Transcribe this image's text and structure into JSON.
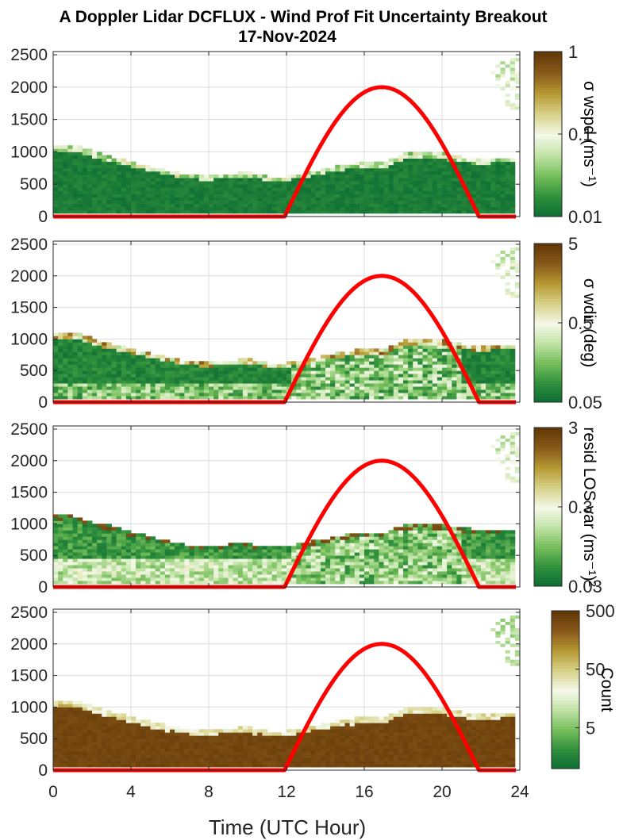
{
  "figure": {
    "title_line1": "A Doppler Lidar DCFLUX - Wind Prof Fit Uncertainty Breakout",
    "title_line2": "17-Nov-2024",
    "xlabel": "Time (UTC Hour)"
  },
  "colors": {
    "curve": "#ff0000",
    "axis": "#262626",
    "grid": "#dcdcdc",
    "colormap": [
      "#0b6b33",
      "#2f8f3c",
      "#74bd5a",
      "#bfe3a4",
      "#f4f8e8",
      "#d8d38a",
      "#b79b35",
      "#8a5a1a",
      "#633808"
    ]
  },
  "chart_data": [
    {
      "type": "heatmap",
      "title": "",
      "x_range": [
        0,
        24
      ],
      "x_ticks": [
        "0",
        "4",
        "8",
        "12",
        "16",
        "20",
        "24"
      ],
      "y_range": [
        0,
        2550
      ],
      "y_ticks": [
        "0",
        "500",
        "1000",
        "1500",
        "2000",
        "2500"
      ],
      "grid": true,
      "colorbar": {
        "label": "σ wspd (ms⁻¹)",
        "scale": "log",
        "range": [
          0.01,
          1
        ],
        "ticks": [
          "0.01",
          "0.1",
          "1"
        ]
      },
      "field": "sigma_wspd",
      "profile_top_m": [
        [
          0,
          1100
        ],
        [
          1,
          1100
        ],
        [
          2,
          1000
        ],
        [
          3,
          900
        ],
        [
          4,
          830
        ],
        [
          5,
          750
        ],
        [
          6,
          680
        ],
        [
          7,
          620
        ],
        [
          8,
          600
        ],
        [
          9,
          640
        ],
        [
          10,
          660
        ],
        [
          11,
          600
        ],
        [
          12,
          600
        ],
        [
          13,
          650
        ],
        [
          14,
          720
        ],
        [
          15,
          780
        ],
        [
          16,
          820
        ],
        [
          17,
          800
        ],
        [
          18,
          960
        ],
        [
          19,
          980
        ],
        [
          20,
          960
        ],
        [
          21,
          900
        ],
        [
          22,
          880
        ],
        [
          23,
          900
        ],
        [
          23.8,
          900
        ]
      ],
      "red_curve_peak": {
        "start_hour": 11.9,
        "end_hour": 21.9,
        "peak_hour": 16.9,
        "peak_m": 2000
      }
    },
    {
      "type": "heatmap",
      "title": "",
      "x_range": [
        0,
        24
      ],
      "x_ticks": [
        "0",
        "4",
        "8",
        "12",
        "16",
        "20",
        "24"
      ],
      "y_range": [
        0,
        2550
      ],
      "y_ticks": [
        "0",
        "500",
        "1000",
        "1500",
        "2000",
        "2500"
      ],
      "grid": true,
      "colorbar": {
        "label": "σ wdir (deg)",
        "scale": "log",
        "range": [
          0.05,
          5
        ],
        "ticks": [
          "0.05",
          "0.5",
          "5"
        ]
      },
      "field": "sigma_wdir",
      "profile_top_m": [
        [
          0,
          1100
        ],
        [
          1,
          1100
        ],
        [
          2,
          1000
        ],
        [
          3,
          900
        ],
        [
          4,
          830
        ],
        [
          5,
          750
        ],
        [
          6,
          680
        ],
        [
          7,
          620
        ],
        [
          8,
          600
        ],
        [
          9,
          640
        ],
        [
          10,
          660
        ],
        [
          11,
          600
        ],
        [
          12,
          600
        ],
        [
          13,
          650
        ],
        [
          14,
          720
        ],
        [
          15,
          780
        ],
        [
          16,
          820
        ],
        [
          17,
          800
        ],
        [
          18,
          960
        ],
        [
          19,
          980
        ],
        [
          20,
          960
        ],
        [
          21,
          900
        ],
        [
          22,
          880
        ],
        [
          23,
          900
        ],
        [
          23.8,
          900
        ]
      ],
      "red_curve_peak": {
        "start_hour": 11.9,
        "end_hour": 21.9,
        "peak_hour": 16.9,
        "peak_m": 2000
      }
    },
    {
      "type": "heatmap",
      "title": "",
      "x_range": [
        0,
        24
      ],
      "x_ticks": [
        "0",
        "4",
        "8",
        "12",
        "16",
        "20",
        "24"
      ],
      "y_range": [
        0,
        2550
      ],
      "y_ticks": [
        "0",
        "500",
        "1000",
        "1500",
        "2000",
        "2500"
      ],
      "grid": true,
      "colorbar": {
        "label": "resid LOS var (ms⁻¹)²",
        "scale": "log",
        "range": [
          0.03,
          3
        ],
        "ticks": [
          "0.03",
          "0.3",
          "3"
        ]
      },
      "field": "resid_los_var",
      "profile_top_m": [
        [
          0,
          1150
        ],
        [
          1,
          1100
        ],
        [
          2,
          1000
        ],
        [
          3,
          950
        ],
        [
          4,
          850
        ],
        [
          5,
          780
        ],
        [
          6,
          700
        ],
        [
          7,
          640
        ],
        [
          8,
          620
        ],
        [
          9,
          650
        ],
        [
          10,
          660
        ],
        [
          11,
          600
        ],
        [
          12,
          620
        ],
        [
          13,
          680
        ],
        [
          14,
          740
        ],
        [
          15,
          800
        ],
        [
          16,
          840
        ],
        [
          17,
          820
        ],
        [
          18,
          960
        ],
        [
          19,
          980
        ],
        [
          20,
          960
        ],
        [
          21,
          920
        ],
        [
          22,
          880
        ],
        [
          23,
          900
        ],
        [
          23.8,
          900
        ]
      ],
      "red_curve_peak": {
        "start_hour": 11.9,
        "end_hour": 21.9,
        "peak_hour": 16.9,
        "peak_m": 2000
      }
    },
    {
      "type": "heatmap",
      "title": "",
      "x_range": [
        0,
        24
      ],
      "x_ticks": [
        "0",
        "4",
        "8",
        "12",
        "16",
        "20",
        "24"
      ],
      "y_range": [
        0,
        2550
      ],
      "y_ticks": [
        "0",
        "500",
        "1000",
        "1500",
        "2000",
        "2500"
      ],
      "grid": true,
      "colorbar": {
        "label": "Count",
        "scale": "log",
        "range": [
          1,
          500
        ],
        "ticks": [
          "5",
          "50",
          "500"
        ]
      },
      "field": "count",
      "profile_top_m": [
        [
          0,
          1100
        ],
        [
          1,
          1100
        ],
        [
          2,
          1000
        ],
        [
          3,
          900
        ],
        [
          4,
          830
        ],
        [
          5,
          750
        ],
        [
          6,
          680
        ],
        [
          7,
          620
        ],
        [
          8,
          600
        ],
        [
          9,
          640
        ],
        [
          10,
          660
        ],
        [
          11,
          600
        ],
        [
          12,
          600
        ],
        [
          13,
          650
        ],
        [
          14,
          720
        ],
        [
          15,
          780
        ],
        [
          16,
          820
        ],
        [
          17,
          800
        ],
        [
          18,
          960
        ],
        [
          19,
          980
        ],
        [
          20,
          960
        ],
        [
          21,
          900
        ],
        [
          22,
          880
        ],
        [
          23,
          900
        ],
        [
          23.8,
          900
        ]
      ],
      "red_curve_peak": {
        "start_hour": 11.9,
        "end_hour": 21.9,
        "peak_hour": 16.9,
        "peak_m": 2000
      }
    }
  ]
}
